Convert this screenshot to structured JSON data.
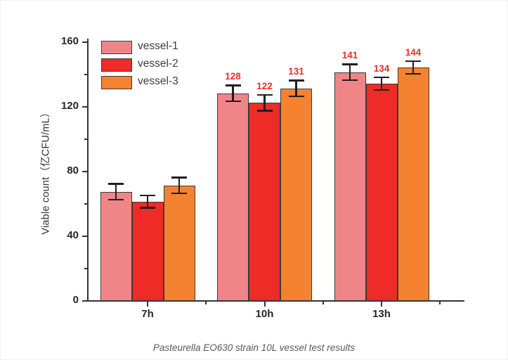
{
  "caption": "Pasteurella EO630 strain 10L vessel test results",
  "chart_data": {
    "type": "bar",
    "title": "",
    "xlabel": "",
    "ylabel": "Viable count（亿CFU/mL）",
    "categories": [
      "7h",
      "10h",
      "13h"
    ],
    "series": [
      {
        "name": "vessel-1",
        "color": "#F08587",
        "values": [
          67,
          128,
          141
        ],
        "errors": [
          5,
          5,
          5
        ],
        "data_labels": [
          "",
          "128",
          "141"
        ]
      },
      {
        "name": "vessel-2",
        "color": "#EE2B26",
        "values": [
          61,
          122,
          134
        ],
        "errors": [
          4,
          5,
          4
        ],
        "data_labels": [
          "",
          "122",
          "134"
        ]
      },
      {
        "name": "vessel-3",
        "color": "#F48231",
        "values": [
          71,
          131,
          144
        ],
        "errors": [
          5,
          5,
          4
        ],
        "data_labels": [
          "",
          "131",
          "144"
        ]
      }
    ],
    "ylim": [
      0,
      160
    ],
    "yticks": [
      0,
      40,
      80,
      120,
      160
    ],
    "y_minor_ticks": [
      20,
      60,
      100,
      140
    ],
    "grid": false,
    "legend_position": "top-left",
    "legend_entries": [
      "vessel-1",
      "vessel-2",
      "vessel-3"
    ],
    "data_label_color": "#EE2C28",
    "bar_border_color": "#3A3A3A",
    "error_bar_color": "#1F1F1F",
    "axis_color": "#333333",
    "tick_label_color": "#262626"
  }
}
